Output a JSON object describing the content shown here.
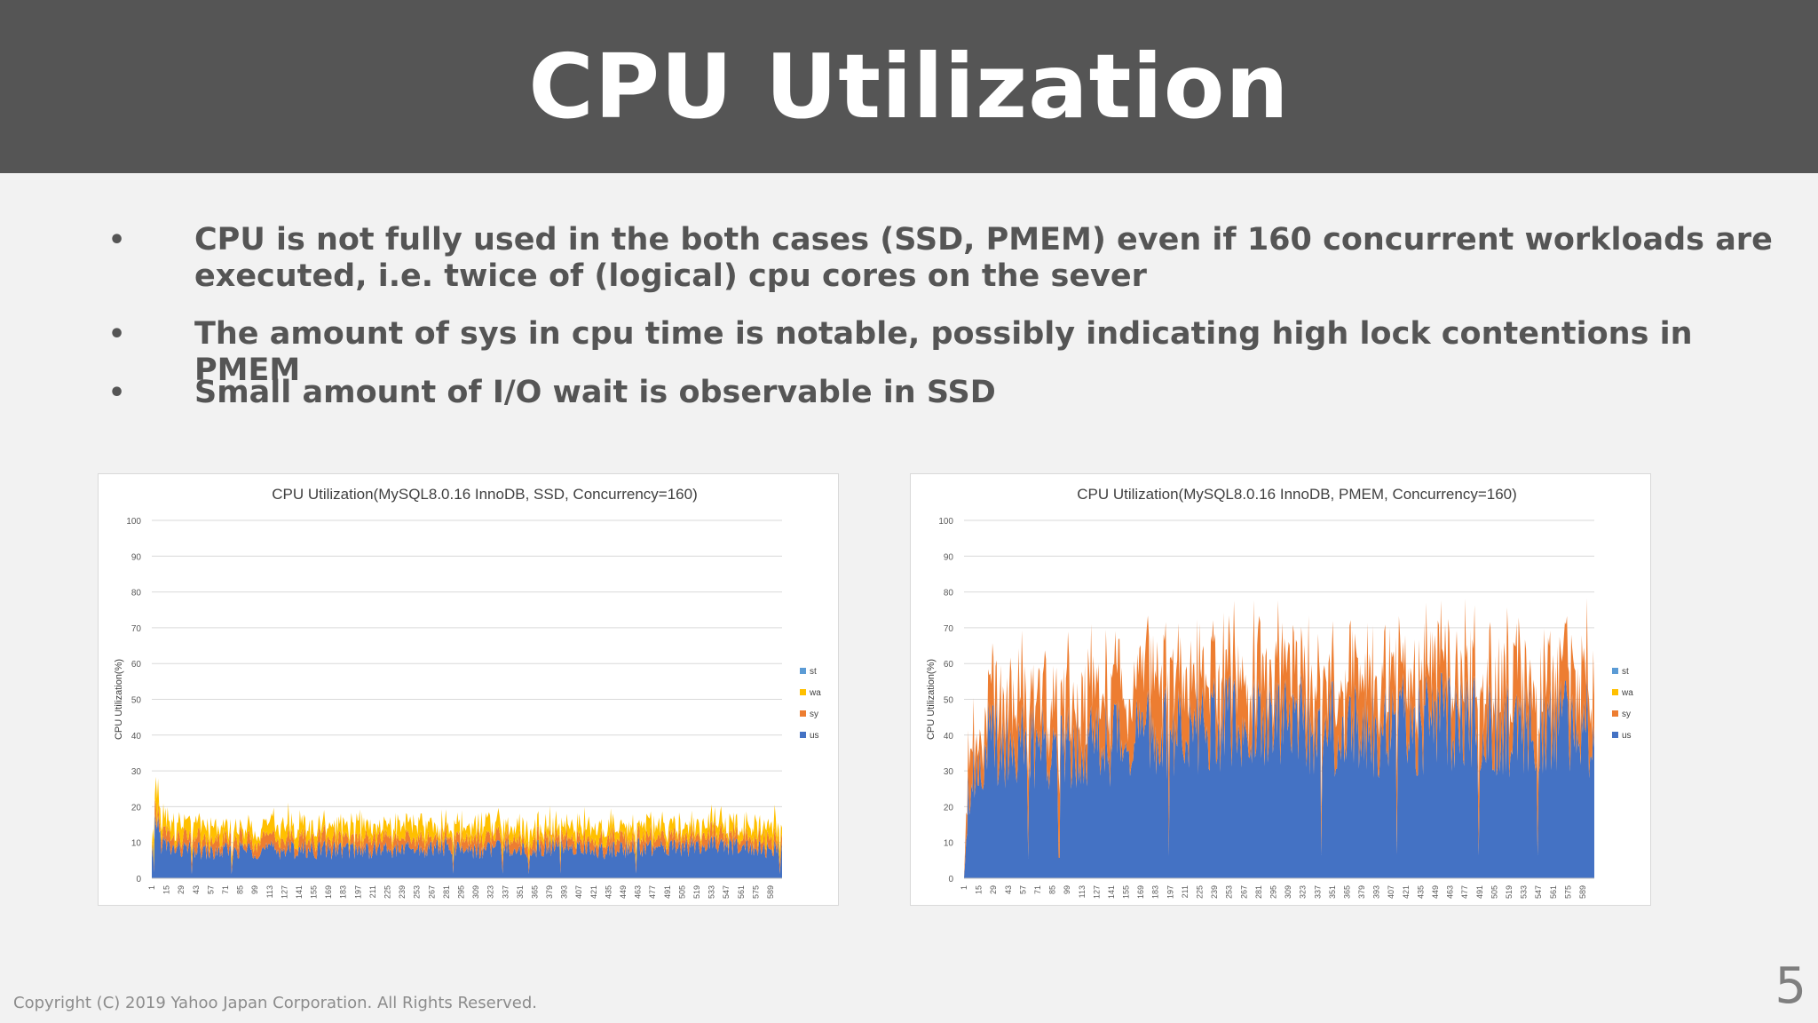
{
  "slide": {
    "title": "CPU Utilization",
    "bullets": [
      {
        "line1": "CPU is not fully used in the both cases (SSD, PMEM) even if 160 concurrent workloads are",
        "line2": "executed, i.e. twice of (logical) cpu cores on the sever"
      },
      {
        "line1": "The amount of sys in cpu time is notable, possibly indicating high lock contentions in PMEM"
      },
      {
        "line1": "Small amount of I/O wait is observable in SSD"
      }
    ],
    "bullet_glyph": "•",
    "footer": "Copyright (C) 2019 Yahoo Japan Corporation. All Rights Reserved.",
    "page_number": "5"
  },
  "colors": {
    "us": "#4472c4",
    "sy": "#ed7d31",
    "wa": "#ffc000",
    "st": "#5b9bd5",
    "header_bg": "#555555",
    "text": "#555555"
  },
  "chart_data": [
    {
      "type": "area",
      "stacked": true,
      "title": "CPU Utilization(MySQL8.0.16 InnoDB, SSD, Concurrency=160)",
      "ylabel": "CPU Utilization(%)",
      "ylim": [
        0,
        100
      ],
      "yticks": [
        0,
        10,
        20,
        30,
        40,
        50,
        60,
        70,
        80,
        90,
        100
      ],
      "xlim": [
        1,
        600
      ],
      "xticks": [
        "1",
        "15",
        "29",
        "43",
        "57",
        "71",
        "85",
        "99",
        "113",
        "127",
        "141",
        "155",
        "169",
        "183",
        "197",
        "211",
        "225",
        "239",
        "253",
        "267",
        "281",
        "295",
        "309",
        "323",
        "337",
        "351",
        "365",
        "379",
        "393",
        "407",
        "421",
        "435",
        "449",
        "463",
        "477",
        "491",
        "505",
        "519",
        "533",
        "547",
        "561",
        "575",
        "589"
      ],
      "grid": true,
      "legend": "right",
      "legend_entries": [
        "st",
        "wa",
        "sy",
        "us"
      ],
      "x": [
        1,
        5,
        10,
        20,
        40,
        60,
        80,
        100,
        120,
        140,
        160,
        180,
        200,
        220,
        240,
        260,
        280,
        300,
        320,
        340,
        360,
        380,
        400,
        420,
        440,
        460,
        480,
        500,
        520,
        540,
        560,
        580,
        600
      ],
      "series": [
        {
          "name": "us",
          "values": [
            5,
            18,
            10,
            8,
            8,
            7,
            8,
            8,
            8,
            8,
            8,
            8,
            8,
            8,
            8,
            8,
            9,
            8,
            8,
            9,
            8,
            9,
            9,
            8,
            8,
            9,
            8,
            9,
            9,
            9,
            9,
            8,
            8
          ]
        },
        {
          "name": "sy",
          "values": [
            1,
            4,
            3,
            3,
            3,
            3,
            3,
            3,
            3,
            3,
            3,
            3,
            3,
            3,
            3,
            3,
            3,
            3,
            3,
            3,
            3,
            3,
            3,
            3,
            3,
            3,
            3,
            3,
            3,
            3,
            3,
            3,
            3
          ]
        },
        {
          "name": "wa",
          "values": [
            2,
            12,
            5,
            4,
            4,
            4,
            3,
            3,
            4,
            4,
            3,
            4,
            4,
            3,
            4,
            4,
            3,
            4,
            4,
            3,
            4,
            3,
            3,
            4,
            3,
            3,
            4,
            3,
            3,
            3,
            3,
            4,
            4
          ]
        },
        {
          "name": "st",
          "values": [
            0,
            0,
            0,
            0,
            0,
            0,
            0,
            0,
            0,
            0,
            0,
            0,
            0,
            0,
            0,
            0,
            0,
            0,
            0,
            0,
            0,
            0,
            0,
            0,
            0,
            0,
            0,
            0,
            0,
            0,
            0,
            0,
            0
          ]
        }
      ]
    },
    {
      "type": "area",
      "stacked": true,
      "title": "CPU Utilization(MySQL8.0.16 InnoDB, PMEM, Concurrency=160)",
      "ylabel": "CPU Utilization(%)",
      "ylim": [
        0,
        100
      ],
      "yticks": [
        0,
        10,
        20,
        30,
        40,
        50,
        60,
        70,
        80,
        90,
        100
      ],
      "xlim": [
        1,
        600
      ],
      "xticks": [
        "1",
        "15",
        "29",
        "43",
        "57",
        "71",
        "85",
        "99",
        "113",
        "127",
        "141",
        "155",
        "169",
        "183",
        "197",
        "211",
        "225",
        "239",
        "253",
        "267",
        "281",
        "295",
        "309",
        "323",
        "337",
        "351",
        "365",
        "379",
        "393",
        "407",
        "421",
        "435",
        "449",
        "463",
        "477",
        "491",
        "505",
        "519",
        "533",
        "547",
        "561",
        "575",
        "589"
      ],
      "grid": true,
      "legend": "right",
      "legend_entries": [
        "st",
        "wa",
        "sy",
        "us"
      ],
      "x": [
        1,
        5,
        10,
        20,
        26,
        30,
        40,
        60,
        80,
        100,
        120,
        140,
        160,
        180,
        200,
        220,
        240,
        260,
        280,
        300,
        320,
        340,
        360,
        380,
        400,
        420,
        440,
        460,
        480,
        500,
        520,
        540,
        560,
        580,
        600
      ],
      "series": [
        {
          "name": "us",
          "values": [
            0,
            25,
            30,
            35,
            38,
            39,
            38,
            37,
            38,
            38,
            38,
            39,
            40,
            40,
            41,
            43,
            43,
            43,
            43,
            43,
            43,
            43,
            43,
            43,
            43,
            43,
            43,
            43,
            43,
            43,
            43,
            43,
            43,
            43,
            43
          ]
        },
        {
          "name": "sy",
          "values": [
            0,
            12,
            10,
            8,
            14,
            13,
            14,
            15,
            15,
            16,
            16,
            17,
            16,
            18,
            17,
            15,
            15,
            15,
            15,
            15,
            15,
            15,
            15,
            15,
            16,
            15,
            15,
            15,
            15,
            15,
            15,
            15,
            15,
            15,
            15
          ]
        },
        {
          "name": "wa",
          "values": [
            0,
            0,
            0,
            0,
            0,
            0,
            0,
            0,
            0,
            0,
            0,
            0,
            0,
            0,
            0,
            0,
            0,
            0,
            0,
            0,
            0,
            0,
            0,
            0,
            0,
            0,
            0,
            0,
            0,
            0,
            0,
            0,
            0,
            0,
            0
          ]
        },
        {
          "name": "st",
          "values": [
            0,
            0,
            0,
            0,
            0,
            0,
            0,
            0,
            0,
            0,
            0,
            0,
            0,
            0,
            0,
            0,
            0,
            0,
            0,
            0,
            0,
            0,
            0,
            0,
            0,
            0,
            0,
            0,
            0,
            0,
            0,
            0,
            0,
            0,
            0
          ]
        }
      ]
    }
  ]
}
